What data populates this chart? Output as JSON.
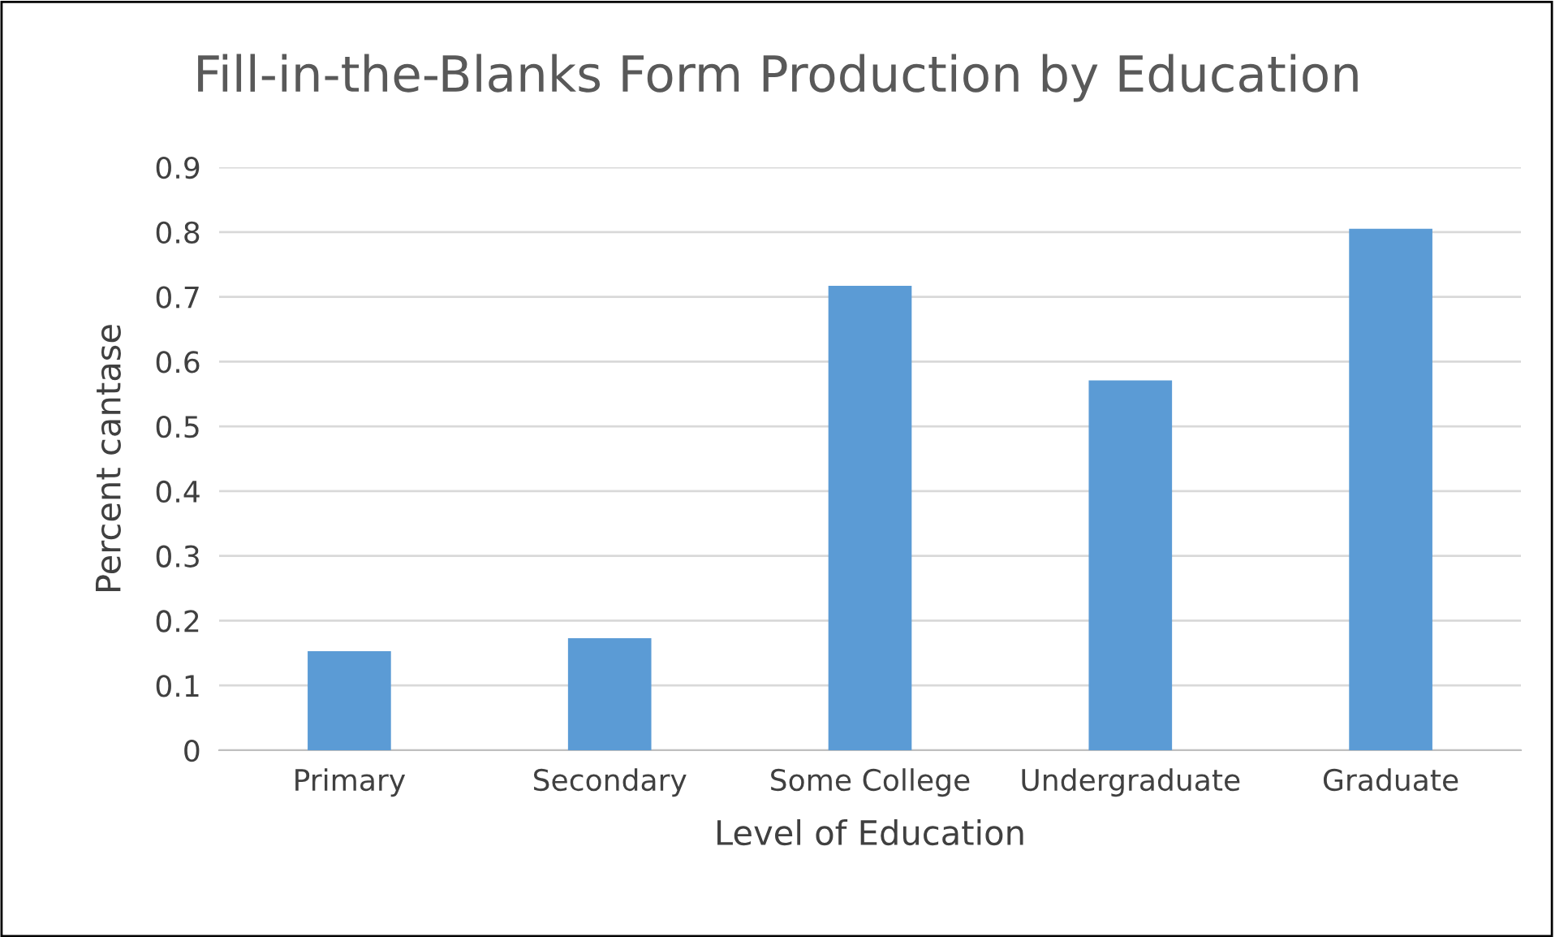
{
  "chart_data": {
    "type": "bar",
    "title": "Fill-in-the-Blanks Form Production by Education",
    "xlabel": "Level of Education",
    "ylabel": "Percent cantase",
    "categories": [
      "Primary",
      "Secondary",
      "Some College",
      "Undergraduate",
      "Graduate"
    ],
    "values": [
      0.153,
      0.173,
      0.717,
      0.571,
      0.805
    ],
    "color": "#5b9bd5",
    "ylim": [
      0,
      0.9
    ],
    "yticks": [
      0,
      0.1,
      0.2,
      0.3,
      0.4,
      0.5,
      0.6,
      0.7,
      0.8,
      0.9
    ],
    "grid": "y"
  }
}
